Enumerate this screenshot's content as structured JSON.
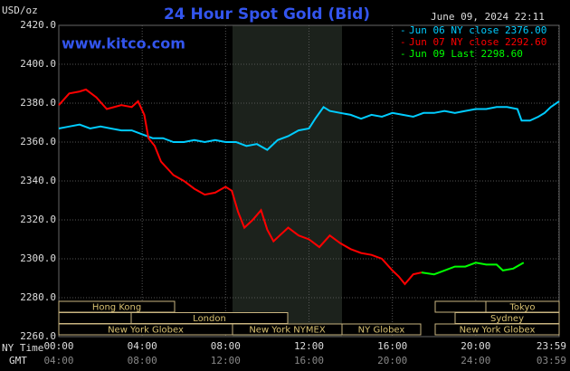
{
  "chart_data": {
    "type": "line",
    "title": "24 Hour Spot Gold (Bid)",
    "unit_label": "USD/oz",
    "date_label": "June 09, 2024 22:11",
    "site": "www.kitco.com",
    "x_label": "NY Time",
    "x2_label": "GMT",
    "xlim": [
      0,
      24
    ],
    "xticks": [
      {
        "value": 0,
        "label": "00:00"
      },
      {
        "value": 4,
        "label": "04:00"
      },
      {
        "value": 8,
        "label": "08:00"
      },
      {
        "value": 12,
        "label": "12:00"
      },
      {
        "value": 16,
        "label": "16:00"
      },
      {
        "value": 20,
        "label": "20:00"
      },
      {
        "value": 23.98,
        "label": "23:59"
      }
    ],
    "gmt_labels": [
      "04:00",
      "08:00",
      "12:00",
      "16:00",
      "20:00",
      "24:00",
      "03:59"
    ],
    "ylim": [
      2260,
      2420
    ],
    "yticks": [
      {
        "value": 2260,
        "label": "2260.0"
      },
      {
        "value": 2280,
        "label": "2280.0"
      },
      {
        "value": 2300,
        "label": "2300.0"
      },
      {
        "value": 2320,
        "label": "2320.0"
      },
      {
        "value": 2340,
        "label": "2340.0"
      },
      {
        "value": 2360,
        "label": "2360.0"
      },
      {
        "value": 2380,
        "label": "2380.0"
      },
      {
        "value": 2400,
        "label": "2400.0"
      },
      {
        "value": 2420,
        "label": "2420.0"
      }
    ],
    "grid": true,
    "sessions": [
      "Hong Kong",
      "Tokyo",
      "London",
      "Sydney",
      "New York Globex",
      "New York NYMEX",
      "NY Globex",
      "New York Globex"
    ],
    "series": [
      {
        "name": "Jun 06 NY close 2376.00",
        "color": "#00ccff",
        "x": [
          0,
          0.5,
          1,
          1.5,
          2,
          2.5,
          3,
          3.5,
          4,
          4.5,
          5,
          5.5,
          6,
          6.5,
          7,
          7.5,
          8,
          8.5,
          9,
          9.5,
          10,
          10.5,
          11,
          11.5,
          12,
          12.3,
          12.7,
          13,
          13.5,
          14,
          14.5,
          15,
          15.5,
          16,
          16.5,
          17,
          17.5,
          18,
          18.5,
          19,
          19.5,
          20,
          20.5,
          21,
          21.5,
          22,
          22.2,
          22.6,
          23,
          23.3,
          23.6,
          24
        ],
        "values": [
          2367,
          2368,
          2369,
          2367,
          2368,
          2367,
          2366,
          2366,
          2364,
          2362,
          2362,
          2360,
          2360,
          2361,
          2360,
          2361,
          2360,
          2360,
          2358,
          2359,
          2356,
          2361,
          2363,
          2366,
          2367,
          2372,
          2378,
          2376,
          2375,
          2374,
          2372,
          2374,
          2373,
          2375,
          2374,
          2373,
          2375,
          2375,
          2376,
          2375,
          2376,
          2377,
          2377,
          2378,
          2378,
          2377,
          2371,
          2371,
          2373,
          2375,
          2378,
          2381
        ]
      },
      {
        "name": "Jun 07 NY close 2292.60",
        "color": "#ff0000",
        "x": [
          0,
          0.5,
          1,
          1.3,
          1.8,
          2.3,
          3,
          3.5,
          3.8,
          4.1,
          4.3,
          4.6,
          4.9,
          5.5,
          6,
          6.5,
          7,
          7.5,
          8,
          8.3,
          8.6,
          8.9,
          9.3,
          9.7,
          10,
          10.3,
          10.6,
          11,
          11.5,
          12,
          12.5,
          13,
          13.5,
          14,
          14.5,
          15,
          15.5,
          16,
          16.3,
          16.6,
          17,
          17.4
        ],
        "values": [
          2379,
          2385,
          2386,
          2387,
          2383,
          2377,
          2379,
          2378,
          2381,
          2374,
          2362,
          2358,
          2350,
          2343,
          2340,
          2336,
          2333,
          2334,
          2337,
          2335,
          2324,
          2316,
          2320,
          2325,
          2315,
          2309,
          2312,
          2316,
          2312,
          2310,
          2306,
          2312,
          2308,
          2305,
          2303,
          2302,
          2300,
          2294,
          2291,
          2287,
          2292,
          2293
        ]
      },
      {
        "name": "Jun 09 Last 2298.60",
        "color": "#00ff00",
        "x": [
          17.4,
          18,
          18.5,
          19,
          19.5,
          20,
          20.5,
          21,
          21.3,
          21.8,
          22.3
        ],
        "values": [
          2293,
          2292,
          2294,
          2296,
          2296,
          2298,
          2297,
          2297,
          2294,
          2295,
          2298
        ]
      }
    ]
  }
}
